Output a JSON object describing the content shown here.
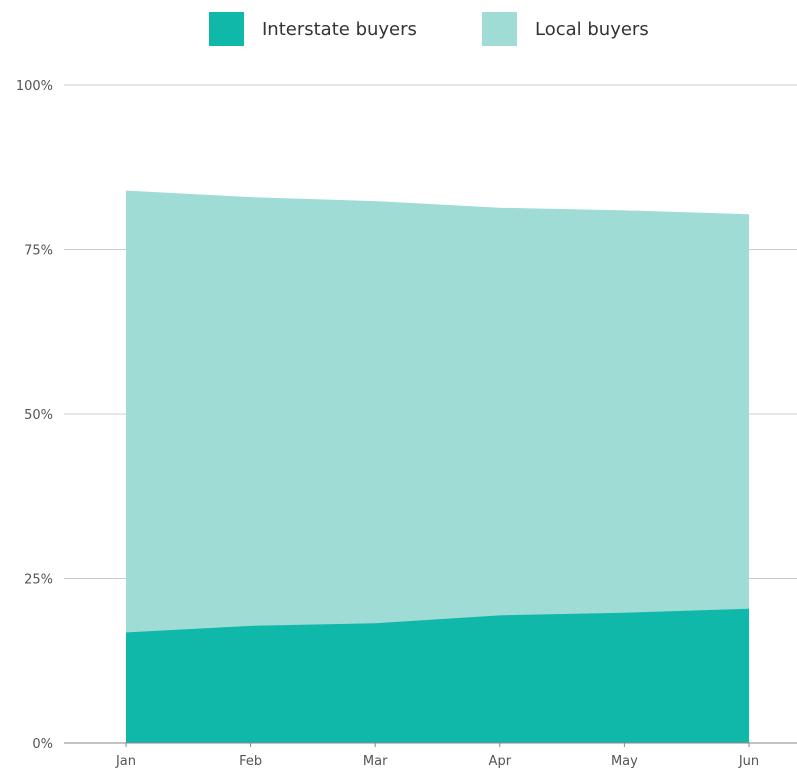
{
  "chart_data": {
    "type": "area",
    "stacked": true,
    "categories": [
      "Jan",
      "Feb",
      "Mar",
      "Apr",
      "May",
      "Jun"
    ],
    "series": [
      {
        "name": "Interstate buyers",
        "color": "#10b8aa",
        "values": [
          16.8,
          17.8,
          18.2,
          19.4,
          19.8,
          20.4
        ]
      },
      {
        "name": "Local buyers",
        "color": "#9fdcd6",
        "values": [
          67.0,
          65.0,
          64.0,
          61.8,
          61.0,
          59.8
        ]
      }
    ],
    "ylim": [
      0,
      100
    ],
    "yticks": [
      0,
      25,
      50,
      75,
      100
    ],
    "ytick_labels": [
      "0%",
      "25%",
      "50%",
      "75%",
      "100%"
    ],
    "grid": true,
    "legend_position": "top-center",
    "title": "",
    "xlabel": "",
    "ylabel": ""
  }
}
